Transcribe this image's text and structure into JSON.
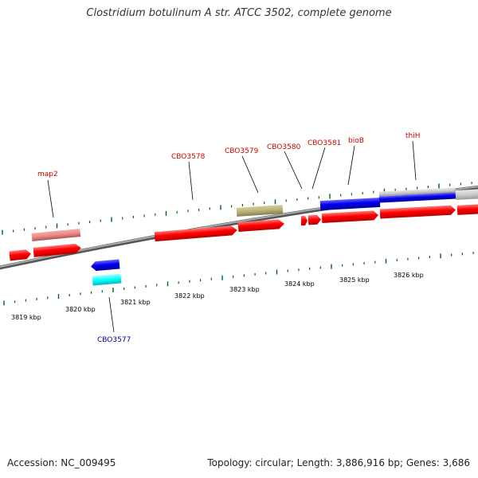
{
  "title": "Clostridium botulinum A str. ATCC 3502, complete genome",
  "footer": {
    "accession": "Accession: NC_009495",
    "summary": "Topology: circular; Length: 3,886,916 bp; Genes: 3,686"
  },
  "scale": {
    "ticks": [
      "3819 kbp",
      "3820 kbp",
      "3821 kbp",
      "3822 kbp",
      "3823 kbp",
      "3824 kbp",
      "3825 kbp",
      "3826 kbp"
    ]
  },
  "gene_labels": [
    {
      "id": "map2",
      "text": "map2",
      "color": "#cc0000"
    },
    {
      "id": "cbo3578",
      "text": "CBO3578",
      "color": "#cc0000"
    },
    {
      "id": "cbo3579",
      "text": "CBO3579",
      "color": "#cc0000"
    },
    {
      "id": "cbo3580",
      "text": "CBO3580",
      "color": "#cc0000"
    },
    {
      "id": "cbo3581",
      "text": "CBO3581",
      "color": "#cc0000"
    },
    {
      "id": "bioB",
      "text": "bioB",
      "color": "#cc0000"
    },
    {
      "id": "thiH",
      "text": "thiH",
      "color": "#cc0000"
    },
    {
      "id": "cbo3577",
      "text": "CBO3577",
      "color": "#000099"
    }
  ],
  "colors": {
    "forward_gene": "#ff0000",
    "reverse_gene": "#0000ee",
    "cyan_feature": "#00ffff",
    "pink_feature": "#ee8888",
    "olive_feature": "#bbb077",
    "gray_feature": "#cccccc",
    "backbone": "#888888",
    "tick": "#006600"
  }
}
